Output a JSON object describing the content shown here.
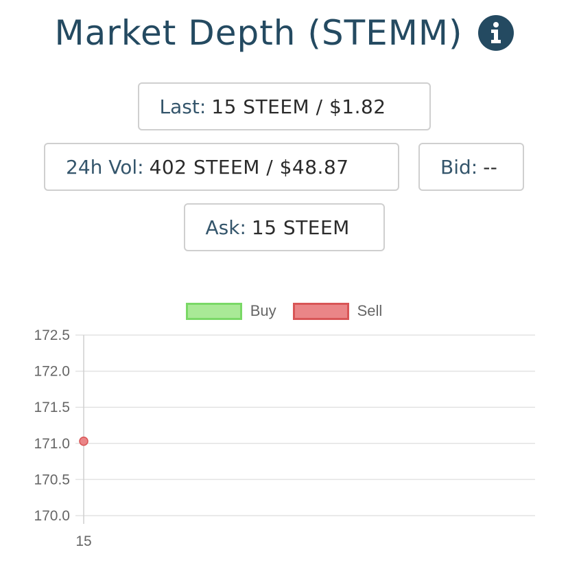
{
  "header": {
    "title": "Market Depth (STEMM)",
    "info_icon": "info-icon"
  },
  "stats": {
    "last": {
      "label": "Last:",
      "value": "15 STEEM / $1.82"
    },
    "volume": {
      "label": "24h Vol:",
      "value": "402 STEEM / $48.87"
    },
    "bid": {
      "label": "Bid:",
      "value": "--"
    },
    "ask": {
      "label": "Ask:",
      "value": "15 STEEM"
    }
  },
  "legend": {
    "buy": {
      "label": "Buy",
      "color": "#a9e996",
      "border": "#7ad866"
    },
    "sell": {
      "label": "Sell",
      "color": "#ea8587",
      "border": "#d85556"
    }
  },
  "chart_data": {
    "type": "line",
    "title": "",
    "xlabel": "",
    "ylabel": "",
    "x_ticks": [
      "15"
    ],
    "y_ticks": [
      "170.0",
      "170.5",
      "171.0",
      "171.5",
      "172.0",
      "172.5"
    ],
    "ylim": [
      170.0,
      172.5
    ],
    "grid": true,
    "legend_position": "top",
    "series": [
      {
        "name": "Buy",
        "color": "#a9e996",
        "points": []
      },
      {
        "name": "Sell",
        "color": "#ea8587",
        "points": [
          {
            "x": 15,
            "y": 171.03
          }
        ]
      }
    ]
  }
}
